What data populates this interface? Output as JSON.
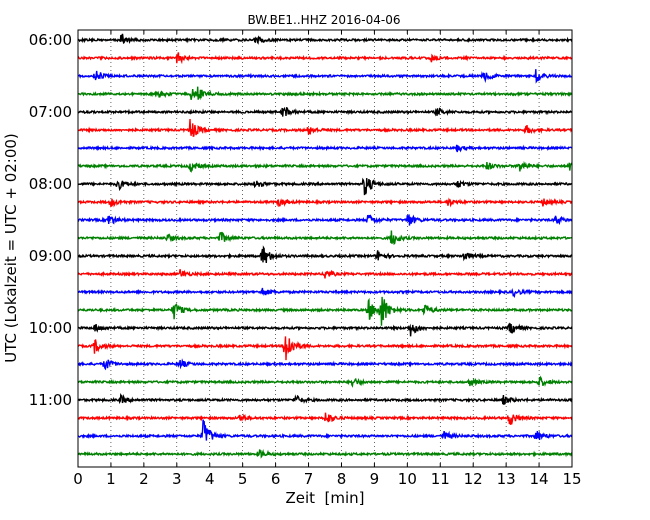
{
  "chart_data": {
    "type": "line",
    "title": "BW.BE1..HHZ 2016-04-06",
    "xlabel": "Zeit  [min]",
    "ylabel": "UTC (Lokalzeit = UTC + 02:00)",
    "xlim": [
      0,
      15
    ],
    "x_ticks": [
      "0",
      "1",
      "2",
      "3",
      "4",
      "5",
      "6",
      "7",
      "8",
      "9",
      "10",
      "11",
      "12",
      "13",
      "14",
      "15"
    ],
    "y_ticks": [
      "06:00",
      "07:00",
      "08:00",
      "09:00",
      "10:00",
      "11:00"
    ],
    "grid": "vertical dotted",
    "trace_minutes": 15,
    "colors": [
      "#000000",
      "#ff0000",
      "#0000ff",
      "#008000"
    ],
    "traces": [
      {
        "start": "06:00",
        "color": "#000000",
        "events": [
          [
            1.3,
            0.5
          ],
          [
            5.4,
            0.3
          ]
        ]
      },
      {
        "start": "06:15",
        "color": "#ff0000",
        "events": [
          [
            3.0,
            0.45
          ],
          [
            10.7,
            0.3
          ]
        ]
      },
      {
        "start": "06:30",
        "color": "#0000ff",
        "events": [
          [
            0.5,
            0.55
          ],
          [
            12.3,
            0.45
          ],
          [
            13.9,
            0.5
          ]
        ]
      },
      {
        "start": "06:45",
        "color": "#008000",
        "events": [
          [
            3.4,
            0.5
          ],
          [
            3.6,
            0.4
          ],
          [
            2.4,
            0.3
          ]
        ]
      },
      {
        "start": "07:00",
        "color": "#000000",
        "events": [
          [
            6.2,
            0.6
          ],
          [
            10.9,
            0.3
          ]
        ]
      },
      {
        "start": "07:15",
        "color": "#ff0000",
        "events": [
          [
            3.4,
            0.9
          ],
          [
            7.0,
            0.35
          ],
          [
            13.6,
            0.35
          ]
        ]
      },
      {
        "start": "07:30",
        "color": "#0000ff",
        "events": [
          [
            11.5,
            0.25
          ]
        ]
      },
      {
        "start": "07:45",
        "color": "#008000",
        "events": [
          [
            3.4,
            0.4
          ],
          [
            13.4,
            0.45
          ],
          [
            14.9,
            0.35
          ],
          [
            12.4,
            0.3
          ]
        ]
      },
      {
        "start": "08:00",
        "color": "#000000",
        "events": [
          [
            1.2,
            0.45
          ],
          [
            5.4,
            0.4
          ],
          [
            8.7,
            0.9
          ],
          [
            11.5,
            0.3
          ]
        ]
      },
      {
        "start": "08:15",
        "color": "#ff0000",
        "events": [
          [
            1.0,
            0.3
          ],
          [
            6.1,
            0.3
          ],
          [
            11.2,
            0.35
          ],
          [
            14.1,
            0.3
          ]
        ]
      },
      {
        "start": "08:30",
        "color": "#0000ff",
        "events": [
          [
            0.9,
            0.5
          ],
          [
            8.8,
            0.45
          ],
          [
            10.0,
            0.6
          ],
          [
            14.5,
            0.35
          ]
        ]
      },
      {
        "start": "08:45",
        "color": "#008000",
        "events": [
          [
            4.3,
            0.5
          ],
          [
            9.5,
            0.7
          ],
          [
            2.7,
            0.3
          ]
        ]
      },
      {
        "start": "09:00",
        "color": "#000000",
        "events": [
          [
            5.6,
            0.9
          ],
          [
            9.1,
            0.4
          ],
          [
            11.7,
            0.4
          ]
        ]
      },
      {
        "start": "09:15",
        "color": "#ff0000",
        "events": [
          [
            3.1,
            0.3
          ],
          [
            7.5,
            0.35
          ]
        ]
      },
      {
        "start": "09:30",
        "color": "#0000ff",
        "events": [
          [
            5.6,
            0.3
          ],
          [
            13.2,
            0.3
          ]
        ]
      },
      {
        "start": "09:45",
        "color": "#008000",
        "events": [
          [
            2.9,
            0.7
          ],
          [
            9.2,
            1.4
          ],
          [
            8.8,
            0.9
          ],
          [
            10.5,
            0.5
          ]
        ]
      },
      {
        "start": "10:00",
        "color": "#000000",
        "events": [
          [
            0.5,
            0.3
          ],
          [
            10.1,
            0.6
          ],
          [
            13.1,
            0.55
          ]
        ]
      },
      {
        "start": "10:15",
        "color": "#ff0000",
        "events": [
          [
            0.5,
            0.5
          ],
          [
            6.3,
            1.5
          ]
        ]
      },
      {
        "start": "10:30",
        "color": "#0000ff",
        "events": [
          [
            0.8,
            0.5
          ],
          [
            3.1,
            0.3
          ]
        ]
      },
      {
        "start": "10:45",
        "color": "#008000",
        "events": [
          [
            8.3,
            0.4
          ],
          [
            11.9,
            0.3
          ],
          [
            14.0,
            0.4
          ]
        ]
      },
      {
        "start": "11:00",
        "color": "#000000",
        "events": [
          [
            1.3,
            0.3
          ],
          [
            6.6,
            0.35
          ],
          [
            12.9,
            0.35
          ]
        ]
      },
      {
        "start": "11:15",
        "color": "#ff0000",
        "events": [
          [
            7.5,
            0.55
          ],
          [
            13.1,
            0.6
          ],
          [
            4.9,
            0.3
          ]
        ]
      },
      {
        "start": "11:30",
        "color": "#0000ff",
        "events": [
          [
            3.8,
            1.3
          ],
          [
            13.9,
            0.45
          ],
          [
            11.1,
            0.35
          ]
        ]
      },
      {
        "start": "11:45",
        "color": "#008000",
        "events": [
          [
            5.5,
            0.3
          ]
        ]
      }
    ]
  }
}
